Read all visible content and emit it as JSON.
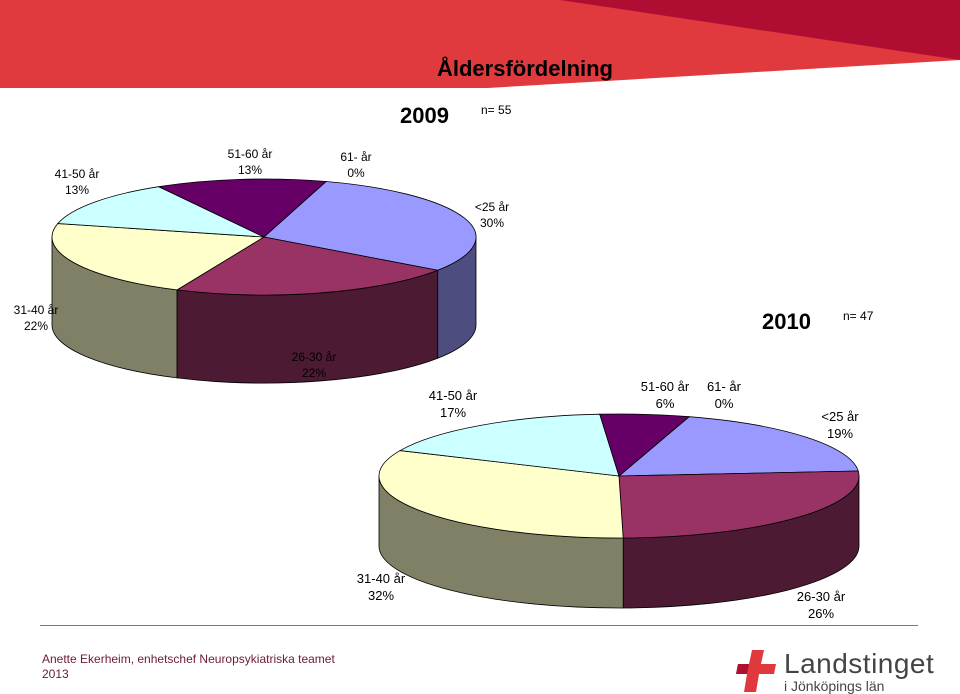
{
  "title": "Åldersfördelning",
  "footer": {
    "line1": "Anette Ekerheim, enhetschef Neuropsykiatriska teamet",
    "line2": "2013"
  },
  "logo": {
    "name": "Landstinget",
    "subtitle": "i Jönköpings län"
  },
  "chart_data": [
    {
      "type": "pie",
      "title": "2009",
      "subtitle": "n= 55",
      "categories": [
        "<25 år",
        "26-30 år",
        "31-40 år",
        "41-50 år",
        "51-60 år",
        "61- år"
      ],
      "values": [
        30,
        22,
        22,
        13,
        13,
        0
      ],
      "labels": [
        "30%",
        "22%",
        "22%",
        "13%",
        "13%",
        "0%"
      ],
      "colors": [
        "#9999ff",
        "#993366",
        "#ffffcc",
        "#ccffff",
        "#660066",
        "#ff8080"
      ]
    },
    {
      "type": "pie",
      "title": "2010",
      "subtitle": "n= 47",
      "categories": [
        "<25 år",
        "26-30 år",
        "31-40 år",
        "41-50 år",
        "51-60 år",
        "61- år"
      ],
      "values": [
        19,
        26,
        32,
        17,
        6,
        0
      ],
      "labels": [
        "19%",
        "26%",
        "32%",
        "17%",
        "6%",
        "0%"
      ],
      "colors": [
        "#9999ff",
        "#993366",
        "#ffffcc",
        "#ccffff",
        "#660066",
        "#ff8080"
      ]
    }
  ]
}
